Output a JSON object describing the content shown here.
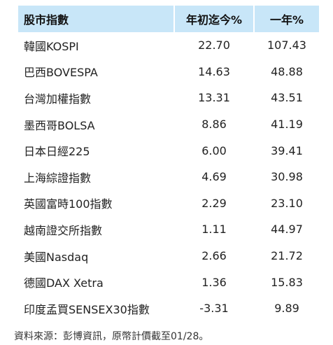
{
  "table": {
    "headers": {
      "name": "股市指數",
      "ytd": "年初迄今%",
      "one_year": "一年%"
    },
    "rows": [
      {
        "name": "韓國KOSPI",
        "ytd": "22.70",
        "one_year": "107.43"
      },
      {
        "name": "巴西BOVESPA",
        "ytd": "14.63",
        "one_year": "48.88"
      },
      {
        "name": "台灣加權指數",
        "ytd": "13.31",
        "one_year": "43.51"
      },
      {
        "name": "墨西哥BOLSA",
        "ytd": "8.86",
        "one_year": "41.19"
      },
      {
        "name": "日本日經225",
        "ytd": "6.00",
        "one_year": "39.41"
      },
      {
        "name": "上海綜證指數",
        "ytd": "4.69",
        "one_year": "30.98"
      },
      {
        "name": "英國富時100指數",
        "ytd": "2.29",
        "one_year": "23.10"
      },
      {
        "name": "越南證交所指數",
        "ytd": "1.11",
        "one_year": "44.97"
      },
      {
        "name": "美國Nasdaq",
        "ytd": "2.66",
        "one_year": "21.72"
      },
      {
        "name": "德國DAX Xetra",
        "ytd": "1.36",
        "one_year": "15.83"
      },
      {
        "name": "印度孟買SENSEX30指數",
        "ytd": "-3.31",
        "one_year": "9.89"
      }
    ]
  },
  "footnote": "資料來源：彭博資訊，原幣計價截至01/28。",
  "colors": {
    "header_bg": "#c8e6f8"
  }
}
